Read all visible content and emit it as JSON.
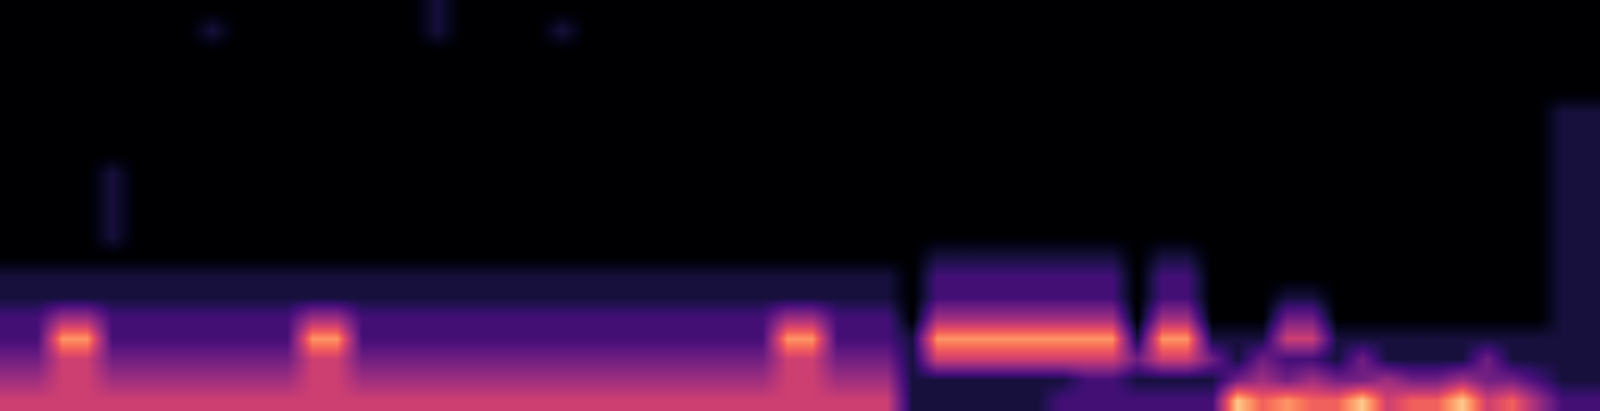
{
  "chart_data": {
    "type": "heatmap",
    "tick_labels": false,
    "value_range": [
      0,
      9
    ],
    "cells": [
      [
        0,
        0,
        0,
        0,
        0,
        0,
        0,
        0,
        0,
        0,
        0,
        0,
        0,
        0,
        0,
        0,
        0,
        1,
        0,
        0,
        0,
        0,
        0,
        0,
        0,
        0,
        0,
        0,
        0,
        0,
        0,
        0,
        0,
        0,
        0,
        0,
        0,
        0,
        0,
        0,
        0,
        0,
        0,
        0,
        0,
        0,
        0,
        0,
        0,
        0,
        0,
        0,
        0,
        0,
        0,
        0,
        0,
        0,
        0,
        0,
        0,
        0,
        0,
        0
      ],
      [
        0,
        0,
        0,
        0,
        0,
        0,
        0,
        0,
        1,
        0,
        0,
        0,
        0,
        0,
        0,
        0,
        0,
        1,
        0,
        0,
        0,
        0,
        1,
        0,
        0,
        0,
        0,
        0,
        0,
        0,
        0,
        0,
        0,
        0,
        0,
        0,
        0,
        0,
        0,
        0,
        0,
        0,
        0,
        0,
        0,
        0,
        0,
        0,
        0,
        0,
        0,
        0,
        0,
        0,
        0,
        0,
        0,
        0,
        0,
        0,
        0,
        0,
        0,
        0
      ],
      [
        0,
        0,
        0,
        0,
        0,
        0,
        0,
        0,
        0,
        0,
        0,
        0,
        0,
        0,
        0,
        0,
        0,
        0,
        0,
        0,
        0,
        0,
        0,
        0,
        0,
        0,
        0,
        0,
        0,
        0,
        0,
        0,
        0,
        0,
        0,
        0,
        0,
        0,
        0,
        0,
        0,
        0,
        0,
        0,
        0,
        0,
        0,
        0,
        0,
        0,
        0,
        0,
        0,
        0,
        0,
        0,
        0,
        0,
        0,
        0,
        0,
        0,
        0,
        0
      ],
      [
        0,
        0,
        0,
        0,
        0,
        0,
        0,
        0,
        0,
        0,
        0,
        0,
        0,
        0,
        0,
        0,
        0,
        0,
        0,
        0,
        0,
        0,
        0,
        0,
        0,
        0,
        0,
        0,
        0,
        0,
        0,
        0,
        0,
        0,
        0,
        0,
        0,
        0,
        0,
        0,
        0,
        0,
        0,
        0,
        0,
        0,
        0,
        0,
        0,
        0,
        0,
        0,
        0,
        0,
        0,
        0,
        0,
        0,
        0,
        0,
        0,
        0,
        0,
        0
      ],
      [
        0,
        0,
        0,
        0,
        0,
        0,
        0,
        0,
        0,
        0,
        0,
        0,
        0,
        0,
        0,
        0,
        0,
        0,
        0,
        0,
        0,
        0,
        0,
        0,
        0,
        0,
        0,
        0,
        0,
        0,
        0,
        0,
        0,
        0,
        0,
        0,
        0,
        0,
        0,
        0,
        0,
        0,
        0,
        0,
        0,
        0,
        0,
        0,
        0,
        0,
        0,
        0,
        0,
        0,
        0,
        0,
        0,
        0,
        0,
        0,
        0,
        0,
        0,
        0
      ],
      [
        0,
        0,
        0,
        0,
        0,
        0,
        0,
        0,
        0,
        0,
        0,
        0,
        0,
        0,
        0,
        0,
        0,
        0,
        0,
        0,
        0,
        0,
        0,
        0,
        0,
        0,
        0,
        0,
        0,
        0,
        0,
        0,
        0,
        0,
        0,
        0,
        0,
        0,
        0,
        0,
        0,
        0,
        0,
        0,
        0,
        0,
        0,
        0,
        0,
        0,
        0,
        0,
        0,
        0,
        0,
        0,
        0,
        0,
        0,
        0,
        0,
        0,
        1,
        1
      ],
      [
        0,
        0,
        0,
        0,
        0,
        0,
        0,
        0,
        0,
        0,
        0,
        0,
        0,
        0,
        0,
        0,
        0,
        0,
        0,
        0,
        0,
        0,
        0,
        0,
        0,
        0,
        0,
        0,
        0,
        0,
        0,
        0,
        0,
        0,
        0,
        0,
        0,
        0,
        0,
        0,
        0,
        0,
        0,
        0,
        0,
        0,
        0,
        0,
        0,
        0,
        0,
        0,
        0,
        0,
        0,
        0,
        0,
        0,
        0,
        0,
        0,
        0,
        1,
        1
      ],
      [
        0,
        0,
        0,
        0,
        0,
        0,
        0,
        0,
        0,
        0,
        0,
        0,
        0,
        0,
        0,
        0,
        0,
        0,
        0,
        0,
        0,
        0,
        0,
        0,
        0,
        0,
        0,
        0,
        0,
        0,
        0,
        0,
        0,
        0,
        0,
        0,
        0,
        0,
        0,
        0,
        0,
        0,
        0,
        0,
        0,
        0,
        0,
        0,
        0,
        0,
        0,
        0,
        0,
        0,
        0,
        0,
        0,
        0,
        0,
        0,
        0,
        0,
        1,
        1
      ],
      [
        0,
        0,
        0,
        0,
        1,
        0,
        0,
        0,
        0,
        0,
        0,
        0,
        0,
        0,
        0,
        0,
        0,
        0,
        0,
        0,
        0,
        0,
        0,
        0,
        0,
        0,
        0,
        0,
        0,
        0,
        0,
        0,
        0,
        0,
        0,
        0,
        0,
        0,
        0,
        0,
        0,
        0,
        0,
        0,
        0,
        0,
        0,
        0,
        0,
        0,
        0,
        0,
        0,
        0,
        0,
        0,
        0,
        0,
        0,
        0,
        0,
        0,
        1,
        1
      ],
      [
        0,
        0,
        0,
        0,
        1,
        0,
        0,
        0,
        0,
        0,
        0,
        0,
        0,
        0,
        0,
        0,
        0,
        0,
        0,
        0,
        0,
        0,
        0,
        0,
        0,
        0,
        0,
        0,
        0,
        0,
        0,
        0,
        0,
        0,
        0,
        0,
        0,
        0,
        0,
        0,
        0,
        0,
        0,
        0,
        0,
        0,
        0,
        0,
        0,
        0,
        0,
        0,
        0,
        0,
        0,
        0,
        0,
        0,
        0,
        0,
        0,
        0,
        1,
        1
      ],
      [
        0,
        0,
        0,
        0,
        1,
        0,
        0,
        0,
        0,
        0,
        0,
        0,
        0,
        0,
        0,
        0,
        0,
        0,
        0,
        0,
        0,
        0,
        0,
        0,
        0,
        0,
        0,
        0,
        0,
        0,
        0,
        0,
        0,
        0,
        0,
        0,
        0,
        0,
        0,
        0,
        0,
        0,
        0,
        0,
        0,
        0,
        0,
        0,
        0,
        0,
        0,
        0,
        0,
        0,
        0,
        0,
        0,
        0,
        0,
        0,
        0,
        0,
        1,
        1
      ],
      [
        0,
        0,
        0,
        0,
        1,
        0,
        0,
        0,
        0,
        0,
        0,
        0,
        0,
        0,
        0,
        0,
        0,
        0,
        0,
        0,
        0,
        0,
        0,
        0,
        0,
        0,
        0,
        0,
        0,
        0,
        0,
        0,
        0,
        0,
        0,
        0,
        0,
        0,
        0,
        0,
        0,
        0,
        0,
        0,
        0,
        0,
        0,
        0,
        0,
        0,
        0,
        0,
        0,
        0,
        0,
        0,
        0,
        0,
        0,
        0,
        0,
        0,
        1,
        1
      ],
      [
        0,
        0,
        0,
        0,
        0,
        0,
        0,
        0,
        0,
        0,
        0,
        0,
        0,
        0,
        0,
        0,
        0,
        0,
        0,
        0,
        0,
        0,
        0,
        0,
        0,
        0,
        0,
        0,
        0,
        0,
        0,
        0,
        0,
        0,
        0,
        0,
        0,
        1,
        1,
        1,
        1,
        1,
        1,
        1,
        1,
        0,
        1,
        1,
        0,
        0,
        0,
        0,
        0,
        0,
        0,
        0,
        0,
        0,
        0,
        0,
        0,
        0,
        1,
        1
      ],
      [
        1,
        1,
        1,
        1,
        1,
        1,
        1,
        1,
        1,
        1,
        1,
        1,
        1,
        1,
        1,
        1,
        1,
        1,
        1,
        1,
        1,
        1,
        1,
        1,
        1,
        1,
        1,
        1,
        1,
        1,
        1,
        1,
        1,
        1,
        1,
        1,
        0,
        2,
        2,
        2,
        2,
        2,
        2,
        2,
        2,
        0,
        2,
        2,
        0,
        0,
        0,
        0,
        0,
        0,
        0,
        0,
        0,
        0,
        0,
        0,
        0,
        0,
        1,
        1
      ],
      [
        1,
        1,
        1,
        1,
        1,
        1,
        1,
        1,
        1,
        1,
        1,
        1,
        1,
        1,
        1,
        1,
        1,
        1,
        1,
        1,
        1,
        1,
        1,
        1,
        1,
        1,
        1,
        1,
        1,
        1,
        1,
        1,
        1,
        1,
        1,
        1,
        0,
        2,
        2,
        2,
        2,
        2,
        2,
        2,
        2,
        0,
        2,
        2,
        0,
        0,
        0,
        1,
        1,
        0,
        0,
        0,
        0,
        0,
        0,
        0,
        0,
        0,
        1,
        1
      ],
      [
        2,
        2,
        4,
        4,
        2,
        2,
        2,
        2,
        2,
        2,
        2,
        2,
        4,
        4,
        2,
        2,
        2,
        2,
        2,
        2,
        2,
        2,
        2,
        2,
        2,
        2,
        2,
        2,
        2,
        2,
        2,
        4,
        4,
        2,
        2,
        2,
        0,
        4,
        4,
        4,
        4,
        4,
        4,
        4,
        4,
        0,
        4,
        4,
        0,
        0,
        0,
        3,
        3,
        0,
        0,
        0,
        0,
        0,
        0,
        0,
        0,
        0,
        1,
        1
      ],
      [
        2,
        2,
        7,
        7,
        2,
        2,
        2,
        2,
        2,
        2,
        2,
        2,
        7,
        7,
        2,
        2,
        2,
        2,
        2,
        2,
        2,
        2,
        2,
        2,
        2,
        2,
        2,
        2,
        2,
        2,
        2,
        7,
        7,
        2,
        2,
        2,
        1,
        7,
        7,
        7,
        7,
        7,
        7,
        7,
        7,
        1,
        7,
        7,
        1,
        1,
        1,
        5,
        5,
        1,
        1,
        1,
        1,
        1,
        1,
        1,
        1,
        1,
        1,
        1
      ],
      [
        3,
        3,
        5,
        5,
        3,
        3,
        3,
        3,
        3,
        3,
        3,
        3,
        5,
        5,
        3,
        3,
        3,
        3,
        3,
        3,
        3,
        3,
        3,
        3,
        3,
        3,
        3,
        3,
        3,
        3,
        3,
        5,
        5,
        3,
        3,
        3,
        1,
        5,
        5,
        5,
        5,
        5,
        5,
        5,
        5,
        3,
        5,
        5,
        3,
        1,
        3,
        2,
        2,
        1,
        3,
        1,
        1,
        1,
        1,
        3,
        1,
        1,
        1,
        1
      ],
      [
        4,
        4,
        5,
        5,
        4,
        4,
        4,
        4,
        4,
        4,
        4,
        4,
        5,
        5,
        4,
        4,
        4,
        4,
        4,
        4,
        4,
        4,
        4,
        4,
        4,
        4,
        4,
        4,
        4,
        4,
        4,
        5,
        5,
        4,
        4,
        4,
        1,
        1,
        1,
        1,
        1,
        1,
        1,
        2,
        2,
        1,
        1,
        1,
        1,
        3,
        4,
        3,
        4,
        3,
        3,
        4,
        3,
        3,
        4,
        3,
        3,
        2,
        1,
        1
      ],
      [
        5,
        5,
        5,
        5,
        5,
        5,
        5,
        5,
        5,
        5,
        5,
        5,
        5,
        5,
        5,
        5,
        5,
        5,
        5,
        5,
        5,
        5,
        5,
        5,
        5,
        5,
        5,
        5,
        5,
        5,
        5,
        5,
        5,
        5,
        5,
        5,
        1,
        1,
        1,
        1,
        1,
        1,
        2,
        2,
        2,
        2,
        2,
        2,
        2,
        8,
        6,
        7,
        6,
        6,
        8,
        5,
        6,
        6,
        8,
        5,
        6,
        4,
        2,
        2
      ]
    ]
  }
}
